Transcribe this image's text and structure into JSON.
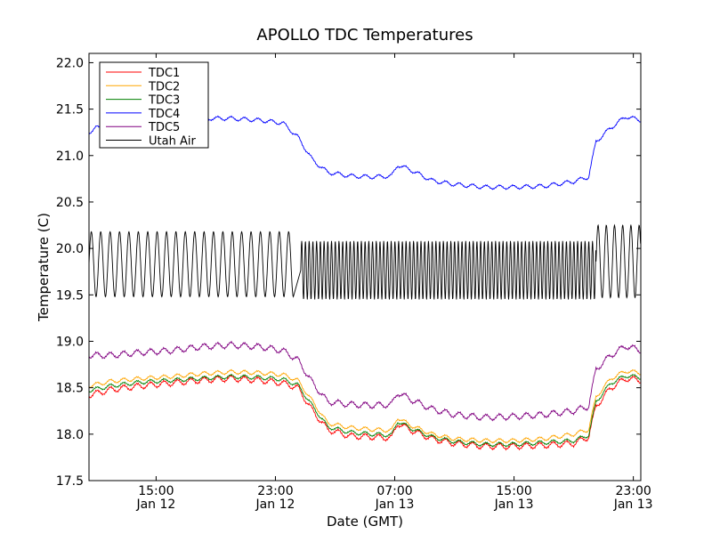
{
  "chart_data": {
    "type": "line",
    "title": "APOLLO TDC Temperatures",
    "xlabel": "Date (GMT)",
    "ylabel": "Temperature (C)",
    "x_unit": "hours since Jan 12 00:00 GMT",
    "xlim": [
      10.5,
      47.5
    ],
    "ylim": [
      17.5,
      22.1
    ],
    "y_ticks": [
      17.5,
      18.0,
      18.5,
      19.0,
      19.5,
      20.0,
      20.5,
      21.0,
      21.5,
      22.0
    ],
    "y_tick_labels": [
      "17.5",
      "18.0",
      "18.5",
      "19.0",
      "19.5",
      "20.0",
      "20.5",
      "21.0",
      "21.5",
      "22.0"
    ],
    "x_ticks": [
      {
        "value": 15,
        "line1": "15:00",
        "line2": "Jan 12"
      },
      {
        "value": 23,
        "line1": "23:00",
        "line2": "Jan 12"
      },
      {
        "value": 31,
        "line1": "07:00",
        "line2": "Jan 13"
      },
      {
        "value": 39,
        "line1": "15:00",
        "line2": "Jan 13"
      },
      {
        "value": 47,
        "line1": "23:00",
        "line2": "Jan 13"
      }
    ],
    "grid": false,
    "legend_position": "top-left",
    "series": [
      {
        "name": "TDC1",
        "color": "#ff0000",
        "wiggle": 0.03,
        "points": [
          [
            10.5,
            18.42
          ],
          [
            12,
            18.48
          ],
          [
            14,
            18.52
          ],
          [
            16,
            18.55
          ],
          [
            18,
            18.58
          ],
          [
            20,
            18.6
          ],
          [
            22,
            18.58
          ],
          [
            23.5,
            18.55
          ],
          [
            24.5,
            18.5
          ],
          [
            25.5,
            18.25
          ],
          [
            26.5,
            18.05
          ],
          [
            28,
            17.98
          ],
          [
            29.5,
            17.97
          ],
          [
            30.8,
            17.96
          ],
          [
            31.2,
            18.12
          ],
          [
            32,
            18.05
          ],
          [
            33.5,
            17.95
          ],
          [
            35,
            17.9
          ],
          [
            37,
            17.87
          ],
          [
            39,
            17.87
          ],
          [
            41,
            17.88
          ],
          [
            43,
            17.9
          ],
          [
            44,
            17.97
          ],
          [
            44.5,
            18.3
          ],
          [
            45.5,
            18.5
          ],
          [
            46.5,
            18.6
          ],
          [
            47.5,
            18.58
          ]
        ]
      },
      {
        "name": "TDC2",
        "color": "#ffa500",
        "wiggle": 0.02,
        "points": [
          [
            10.5,
            18.52
          ],
          [
            12,
            18.57
          ],
          [
            14,
            18.6
          ],
          [
            16,
            18.62
          ],
          [
            18,
            18.65
          ],
          [
            20,
            18.67
          ],
          [
            22,
            18.66
          ],
          [
            23.5,
            18.64
          ],
          [
            24.5,
            18.58
          ],
          [
            25.5,
            18.35
          ],
          [
            26.5,
            18.12
          ],
          [
            28,
            18.07
          ],
          [
            29.5,
            18.05
          ],
          [
            30.8,
            18.04
          ],
          [
            31.2,
            18.18
          ],
          [
            32,
            18.1
          ],
          [
            33.5,
            18.0
          ],
          [
            35,
            17.95
          ],
          [
            37,
            17.93
          ],
          [
            39,
            17.93
          ],
          [
            41,
            17.95
          ],
          [
            43,
            18.0
          ],
          [
            44,
            18.05
          ],
          [
            44.5,
            18.4
          ],
          [
            45.5,
            18.6
          ],
          [
            46.5,
            18.68
          ],
          [
            47.5,
            18.66
          ]
        ]
      },
      {
        "name": "TDC3",
        "color": "#008000",
        "wiggle": 0.02,
        "points": [
          [
            10.5,
            18.47
          ],
          [
            12,
            18.52
          ],
          [
            14,
            18.56
          ],
          [
            16,
            18.58
          ],
          [
            18,
            18.6
          ],
          [
            20,
            18.62
          ],
          [
            22,
            18.61
          ],
          [
            23.5,
            18.59
          ],
          [
            24.5,
            18.53
          ],
          [
            25.5,
            18.3
          ],
          [
            26.5,
            18.08
          ],
          [
            28,
            18.02
          ],
          [
            29.5,
            18.0
          ],
          [
            30.8,
            17.99
          ],
          [
            31.2,
            18.14
          ],
          [
            32,
            18.07
          ],
          [
            33.5,
            17.97
          ],
          [
            35,
            17.92
          ],
          [
            37,
            17.89
          ],
          [
            39,
            17.89
          ],
          [
            41,
            17.91
          ],
          [
            43,
            17.93
          ],
          [
            44,
            17.99
          ],
          [
            44.5,
            18.35
          ],
          [
            45.5,
            18.55
          ],
          [
            46.5,
            18.63
          ],
          [
            47.5,
            18.61
          ]
        ]
      },
      {
        "name": "TDC4",
        "color": "#0000ff",
        "wiggle": 0.02,
        "points": [
          [
            10.5,
            21.25
          ],
          [
            11,
            21.3
          ],
          [
            12,
            21.3
          ],
          [
            14,
            21.35
          ],
          [
            16,
            21.37
          ],
          [
            18,
            21.4
          ],
          [
            20,
            21.4
          ],
          [
            22,
            21.38
          ],
          [
            23.5,
            21.35
          ],
          [
            24.5,
            21.2
          ],
          [
            25.5,
            20.95
          ],
          [
            26.5,
            20.82
          ],
          [
            28,
            20.78
          ],
          [
            29.5,
            20.77
          ],
          [
            30.8,
            20.78
          ],
          [
            31.2,
            20.9
          ],
          [
            32,
            20.85
          ],
          [
            33.5,
            20.73
          ],
          [
            35,
            20.69
          ],
          [
            37,
            20.66
          ],
          [
            39,
            20.66
          ],
          [
            41,
            20.67
          ],
          [
            43,
            20.72
          ],
          [
            44,
            20.77
          ],
          [
            44.5,
            21.15
          ],
          [
            45.5,
            21.3
          ],
          [
            46.5,
            21.42
          ],
          [
            47.5,
            21.38
          ]
        ]
      },
      {
        "name": "TDC5",
        "color": "#800080",
        "wiggle": 0.03,
        "points": [
          [
            10.5,
            18.85
          ],
          [
            12,
            18.85
          ],
          [
            14,
            18.88
          ],
          [
            16,
            18.9
          ],
          [
            18,
            18.94
          ],
          [
            20,
            18.96
          ],
          [
            22,
            18.94
          ],
          [
            23.5,
            18.9
          ],
          [
            24.5,
            18.8
          ],
          [
            25.5,
            18.55
          ],
          [
            26.5,
            18.35
          ],
          [
            28,
            18.32
          ],
          [
            29.5,
            18.31
          ],
          [
            30.8,
            18.32
          ],
          [
            31.2,
            18.45
          ],
          [
            32,
            18.38
          ],
          [
            33.5,
            18.27
          ],
          [
            35,
            18.21
          ],
          [
            37,
            18.18
          ],
          [
            39,
            18.19
          ],
          [
            41,
            18.21
          ],
          [
            43,
            18.25
          ],
          [
            44,
            18.3
          ],
          [
            44.5,
            18.7
          ],
          [
            45.5,
            18.85
          ],
          [
            46.5,
            18.95
          ],
          [
            47.5,
            18.9
          ]
        ]
      },
      {
        "name": "Utah Air",
        "color": "#000000",
        "oscillation": [
          {
            "start": 10.5,
            "end": 24.2,
            "period": 0.63,
            "min": 19.48,
            "max": 20.18
          },
          {
            "start": 24.7,
            "end": 44.5,
            "period": 0.25,
            "min": 19.45,
            "max": 20.08
          },
          {
            "start": 44.5,
            "end": 47.5,
            "period": 0.55,
            "min": 19.47,
            "max": 20.25
          }
        ]
      }
    ]
  }
}
